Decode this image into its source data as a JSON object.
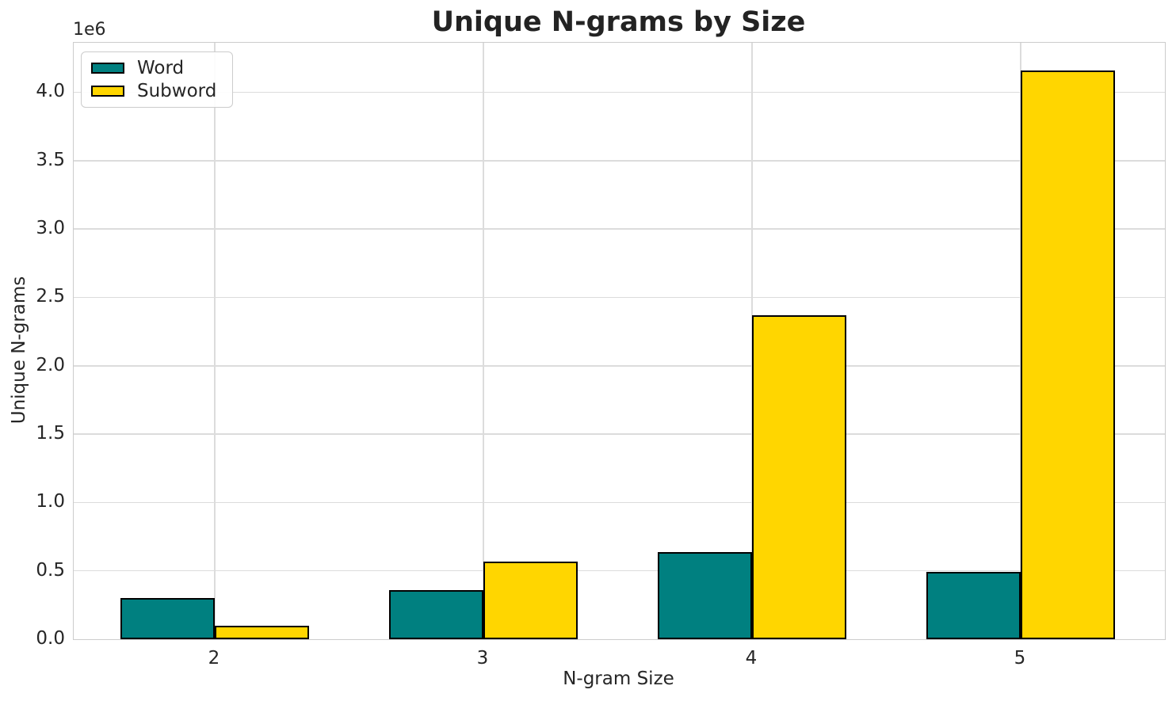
{
  "chart_data": {
    "type": "bar",
    "title": "Unique N-grams by Size",
    "xlabel": "N-gram Size",
    "ylabel": "Unique N-grams",
    "y_offset_label": "1e6",
    "categories": [
      "2",
      "3",
      "4",
      "5"
    ],
    "x_positions": [
      0,
      1,
      2,
      3
    ],
    "series": [
      {
        "name": "Word",
        "color": "#008080",
        "values": [
          300000,
          360000,
          640000,
          490000
        ]
      },
      {
        "name": "Subword",
        "color": "#FFD600",
        "values": [
          100000,
          570000,
          2370000,
          4160000
        ]
      }
    ],
    "bar_width": 0.35,
    "bar_edge_color": "#000000",
    "bar_edge_width": 2.5,
    "xlim": [
      -0.525,
      3.537
    ],
    "ylim": [
      0,
      4362000
    ],
    "yticks": [
      {
        "v": 0,
        "label": "0.0"
      },
      {
        "v": 500000,
        "label": "0.5"
      },
      {
        "v": 1000000,
        "label": "1.0"
      },
      {
        "v": 1500000,
        "label": "1.5"
      },
      {
        "v": 2000000,
        "label": "2.0"
      },
      {
        "v": 2500000,
        "label": "2.5"
      },
      {
        "v": 3000000,
        "label": "3.0"
      },
      {
        "v": 3500000,
        "label": "3.5"
      },
      {
        "v": 4000000,
        "label": "4.0"
      }
    ],
    "grid": true,
    "legend_position": "upper left",
    "colors": {
      "background": "#ffffff",
      "grid": "#dcdcdc",
      "spine": "#cccccc",
      "text": "#262626"
    }
  }
}
